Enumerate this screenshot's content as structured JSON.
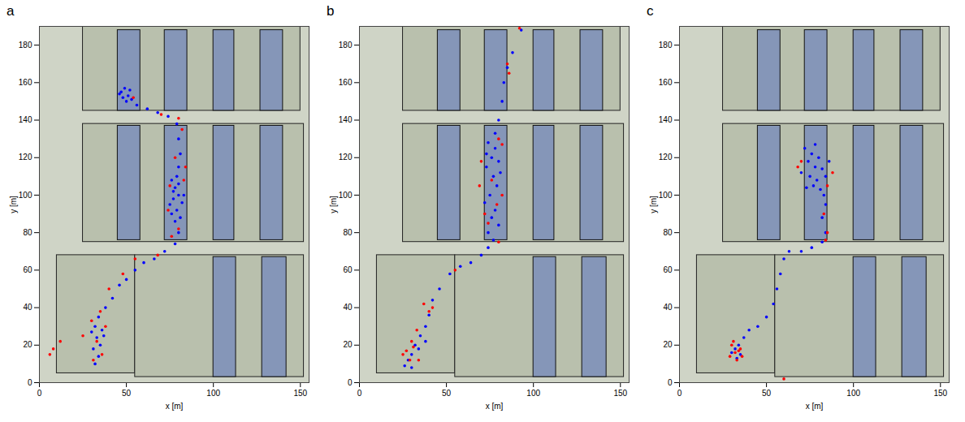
{
  "chart_data": [
    {
      "type": "scatter",
      "title": "a",
      "x_label": "x [m]",
      "y_label": "y [m]",
      "xlim": [
        0,
        155
      ],
      "xticks": [
        0,
        50,
        100,
        150
      ],
      "ylim": [
        0,
        190
      ],
      "yticks": [
        0,
        20,
        40,
        60,
        80,
        100,
        120,
        140,
        160,
        180
      ],
      "buildings": [
        [
          45,
          58,
          145,
          188
        ],
        [
          72,
          85,
          145,
          188
        ],
        [
          100,
          112,
          145,
          188
        ],
        [
          127,
          140,
          145,
          188
        ],
        [
          45,
          58,
          76,
          137
        ],
        [
          72,
          85,
          76,
          137
        ],
        [
          100,
          112,
          76,
          137
        ],
        [
          127,
          140,
          76,
          137
        ],
        [
          100,
          113,
          3,
          67
        ],
        [
          128,
          142,
          3,
          67
        ]
      ],
      "blocks": [
        [
          25,
          150,
          145,
          190
        ],
        [
          25,
          152,
          75,
          138
        ],
        [
          10,
          55,
          5,
          68
        ],
        [
          55,
          152,
          3,
          68
        ]
      ],
      "series": [
        {
          "color": "#0000ff",
          "marker": "dot",
          "x": [
            47,
            49,
            51,
            48,
            52,
            50,
            46,
            53,
            56,
            62,
            68,
            74,
            79,
            80,
            81,
            80,
            76,
            78,
            80,
            77,
            82,
            79,
            75,
            81,
            78,
            77,
            80,
            76,
            83,
            79,
            80,
            78,
            72,
            66,
            60,
            55,
            50,
            46,
            42,
            38,
            34,
            32,
            36,
            33,
            35,
            31,
            34,
            32,
            37,
            30
          ],
          "y": [
            155,
            157,
            153,
            152,
            156,
            150,
            154,
            151,
            148,
            146,
            144,
            142,
            138,
            130,
            122,
            115,
            108,
            104,
            100,
            98,
            96,
            92,
            95,
            88,
            86,
            102,
            106,
            90,
            100,
            110,
            80,
            74,
            70,
            66,
            64,
            60,
            55,
            52,
            45,
            40,
            35,
            30,
            28,
            24,
            20,
            18,
            14,
            10,
            25,
            27
          ]
        },
        {
          "color": "#ff0000",
          "marker": "dot",
          "x": [
            54,
            70,
            80,
            82,
            78,
            75,
            83,
            74,
            80,
            76,
            84,
            68,
            55,
            48,
            40,
            35,
            30,
            33,
            36,
            31,
            8,
            12,
            6,
            25,
            38
          ],
          "y": [
            152,
            143,
            141,
            135,
            120,
            105,
            108,
            92,
            82,
            78,
            115,
            68,
            66,
            58,
            50,
            38,
            33,
            22,
            15,
            12,
            18,
            22,
            15,
            25,
            30
          ]
        }
      ]
    },
    {
      "type": "scatter",
      "title": "b",
      "x_label": "x [m]",
      "y_label": "y [m]",
      "xlim": [
        0,
        155
      ],
      "xticks": [
        0,
        50,
        100,
        150
      ],
      "ylim": [
        0,
        190
      ],
      "yticks": [
        0,
        20,
        40,
        60,
        80,
        100,
        120,
        140,
        160,
        180
      ],
      "buildings": [
        [
          45,
          58,
          145,
          188
        ],
        [
          72,
          85,
          145,
          188
        ],
        [
          100,
          112,
          145,
          188
        ],
        [
          127,
          140,
          145,
          188
        ],
        [
          45,
          58,
          76,
          137
        ],
        [
          72,
          85,
          76,
          137
        ],
        [
          100,
          112,
          76,
          137
        ],
        [
          127,
          140,
          76,
          137
        ],
        [
          100,
          113,
          3,
          67
        ],
        [
          128,
          142,
          3,
          67
        ]
      ],
      "blocks": [
        [
          25,
          150,
          145,
          190
        ],
        [
          25,
          152,
          75,
          138
        ],
        [
          10,
          55,
          5,
          68
        ],
        [
          55,
          152,
          3,
          68
        ]
      ],
      "series": [
        {
          "color": "#0000ff",
          "marker": "dot",
          "x": [
            93,
            88,
            85,
            83,
            82,
            80,
            78,
            74,
            78,
            76,
            80,
            73,
            77,
            79,
            75,
            72,
            78,
            76,
            80,
            74,
            77,
            81,
            73,
            74,
            70,
            64,
            58,
            52,
            46,
            42,
            40,
            38,
            35,
            32,
            30,
            28,
            26,
            34,
            38,
            30
          ],
          "y": [
            188,
            176,
            168,
            160,
            150,
            140,
            133,
            128,
            125,
            120,
            118,
            115,
            110,
            105,
            100,
            96,
            92,
            88,
            84,
            80,
            76,
            112,
            122,
            72,
            68,
            64,
            62,
            58,
            50,
            44,
            36,
            30,
            25,
            20,
            15,
            12,
            9,
            18,
            22,
            8
          ]
        },
        {
          "color": "#ff0000",
          "marker": "dot",
          "x": [
            92,
            85,
            86,
            80,
            82,
            70,
            76,
            82,
            72,
            79,
            74,
            69,
            80,
            55,
            42,
            37,
            40,
            33,
            30,
            27,
            29,
            25,
            34,
            31
          ],
          "y": [
            189,
            170,
            165,
            130,
            127,
            118,
            108,
            100,
            90,
            95,
            85,
            105,
            75,
            60,
            40,
            42,
            38,
            28,
            22,
            17,
            12,
            15,
            12,
            19
          ]
        }
      ]
    },
    {
      "type": "scatter",
      "title": "c",
      "x_label": "x [m]",
      "y_label": "y [m]",
      "xlim": [
        0,
        155
      ],
      "xticks": [
        0,
        50,
        100,
        150
      ],
      "ylim": [
        0,
        190
      ],
      "yticks": [
        0,
        20,
        40,
        60,
        80,
        100,
        120,
        140,
        160,
        180
      ],
      "buildings": [
        [
          45,
          58,
          145,
          188
        ],
        [
          72,
          85,
          145,
          188
        ],
        [
          100,
          112,
          145,
          188
        ],
        [
          127,
          140,
          145,
          188
        ],
        [
          45,
          58,
          76,
          137
        ],
        [
          72,
          85,
          76,
          137
        ],
        [
          100,
          112,
          76,
          137
        ],
        [
          127,
          140,
          76,
          137
        ],
        [
          100,
          113,
          3,
          67
        ],
        [
          128,
          142,
          3,
          67
        ]
      ],
      "blocks": [
        [
          25,
          150,
          145,
          190
        ],
        [
          25,
          152,
          75,
          138
        ],
        [
          10,
          55,
          5,
          68
        ],
        [
          55,
          152,
          3,
          68
        ]
      ],
      "series": [
        {
          "color": "#0000ff",
          "marker": "dot",
          "x": [
            72,
            76,
            80,
            74,
            78,
            82,
            70,
            75,
            79,
            84,
            77,
            73,
            81,
            86,
            78,
            83,
            84,
            82,
            84,
            82,
            76,
            70,
            63,
            60,
            58,
            56,
            54,
            50,
            45,
            40,
            37,
            34,
            32,
            35,
            30,
            33
          ],
          "y": [
            125,
            122,
            120,
            118,
            115,
            114,
            112,
            110,
            108,
            110,
            105,
            104,
            103,
            118,
            127,
            100,
            95,
            88,
            80,
            75,
            72,
            70,
            70,
            66,
            58,
            50,
            42,
            35,
            30,
            28,
            24,
            20,
            18,
            15,
            16,
            13
          ]
        },
        {
          "color": "#ff0000",
          "marker": "dot",
          "x": [
            70,
            68,
            88,
            85,
            83,
            85,
            84,
            35,
            32,
            30,
            33,
            36,
            31,
            34,
            60,
            29
          ],
          "y": [
            118,
            115,
            112,
            105,
            90,
            80,
            76,
            18,
            16,
            20,
            12,
            14,
            22,
            17,
            2,
            14
          ]
        }
      ]
    }
  ]
}
